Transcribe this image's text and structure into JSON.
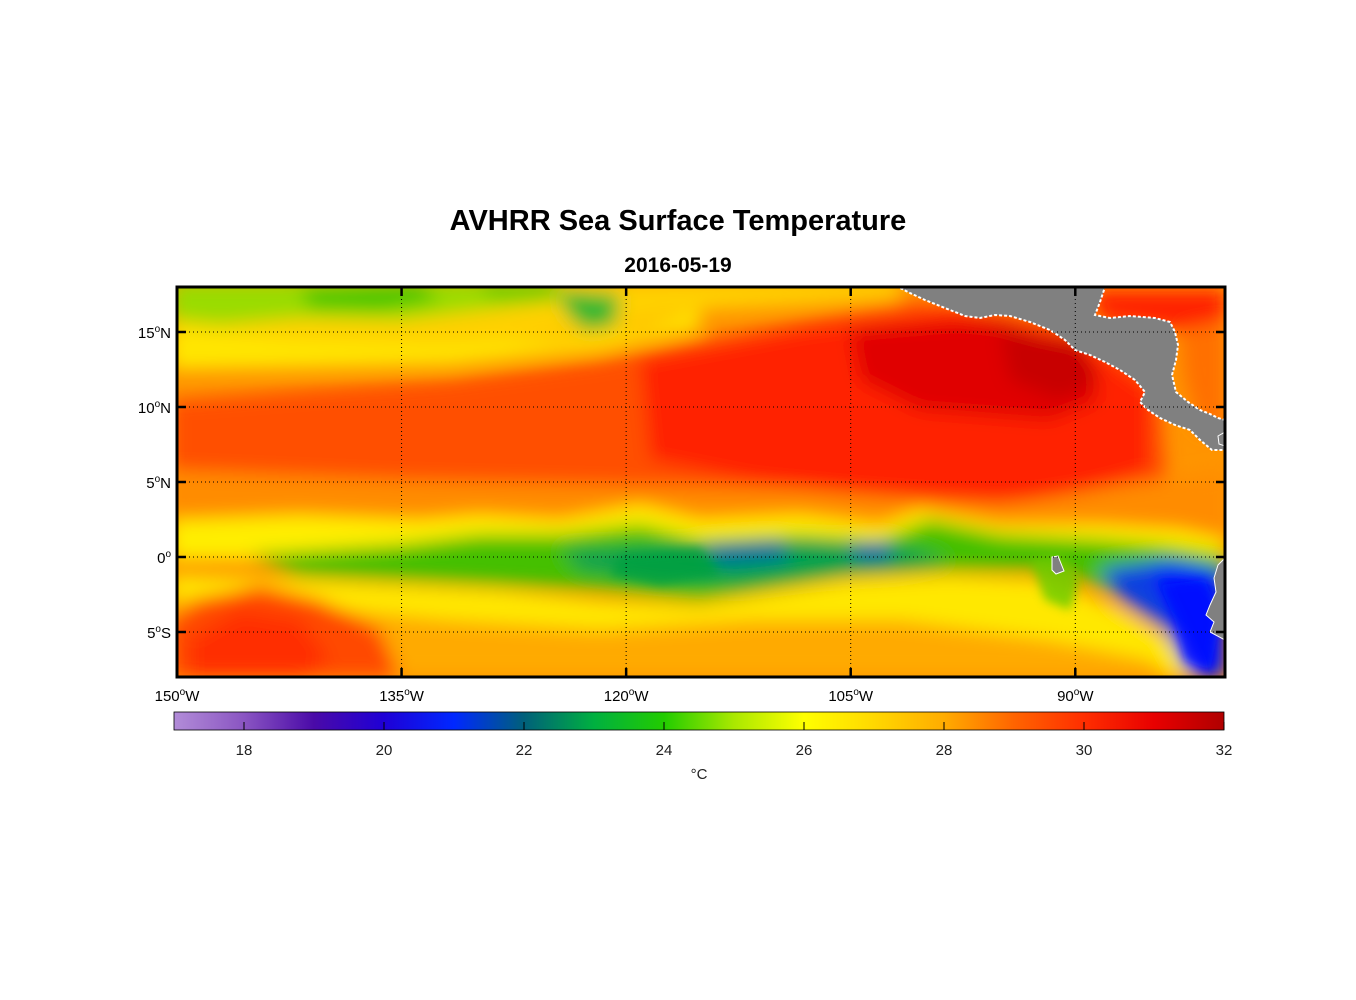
{
  "figure": {
    "title": "AVHRR Sea Surface Temperature",
    "subtitle": "2016-05-19"
  },
  "map": {
    "lon_range": [
      -150,
      -80
    ],
    "lat_range": [
      -8,
      18
    ],
    "x_ticks": [
      {
        "value": -150,
        "num": "150",
        "deg": "o",
        "hem": "W"
      },
      {
        "value": -135,
        "num": "135",
        "deg": "o",
        "hem": "W"
      },
      {
        "value": -120,
        "num": "120",
        "deg": "o",
        "hem": "W"
      },
      {
        "value": -105,
        "num": "105",
        "deg": "o",
        "hem": "W"
      },
      {
        "value": -90,
        "num": "90",
        "deg": "o",
        "hem": "W"
      }
    ],
    "y_ticks": [
      {
        "value": 15,
        "num": "15",
        "deg": "o",
        "hem": "N"
      },
      {
        "value": 10,
        "num": "10",
        "deg": "o",
        "hem": "N"
      },
      {
        "value": 5,
        "num": "5",
        "deg": "o",
        "hem": "N"
      },
      {
        "value": 0,
        "num": "0",
        "deg": "o",
        "hem": ""
      },
      {
        "value": -5,
        "num": "5",
        "deg": "o",
        "hem": "S"
      }
    ],
    "land_color": "#808080",
    "grid_color": "#000000"
  },
  "colorbar": {
    "min": 17,
    "max": 32,
    "ticks": [
      "18",
      "20",
      "22",
      "24",
      "26",
      "28",
      "30",
      "32"
    ],
    "units": "°C",
    "stops": [
      {
        "v": 17,
        "c": "#b28cd8"
      },
      {
        "v": 18,
        "c": "#8a55c2"
      },
      {
        "v": 19,
        "c": "#4a0aa8"
      },
      {
        "v": 20,
        "c": "#1f00d6"
      },
      {
        "v": 21,
        "c": "#0028ff"
      },
      {
        "v": 22,
        "c": "#00607a"
      },
      {
        "v": 23,
        "c": "#00b040"
      },
      {
        "v": 24,
        "c": "#22cc00"
      },
      {
        "v": 25,
        "c": "#aae800"
      },
      {
        "v": 26,
        "c": "#ffff00"
      },
      {
        "v": 27,
        "c": "#ffd800"
      },
      {
        "v": 28,
        "c": "#ffac00"
      },
      {
        "v": 29,
        "c": "#ff6400"
      },
      {
        "v": 30,
        "c": "#ff2e00"
      },
      {
        "v": 31,
        "c": "#e80000"
      },
      {
        "v": 32,
        "c": "#b00000"
      }
    ]
  }
}
